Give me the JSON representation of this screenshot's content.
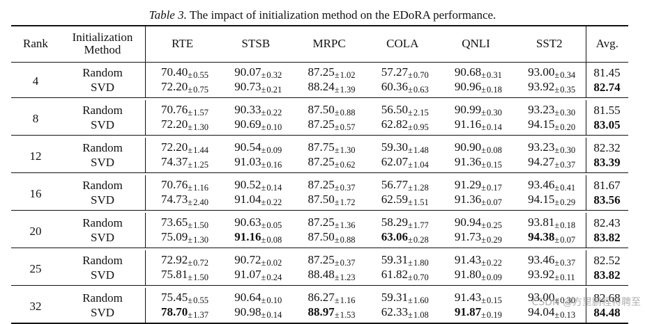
{
  "caption": {
    "label": "Table 3.",
    "text": "The impact of initialization method on the EDoRA performance."
  },
  "header": {
    "rank": "Rank",
    "init_line1": "Initialization",
    "init_line2": "Method",
    "columns": [
      "RTE",
      "STSB",
      "MRPC",
      "COLA",
      "QNLI",
      "SST2"
    ],
    "avg": "Avg."
  },
  "groups": [
    {
      "rank": "4",
      "rows": [
        {
          "method": "Random",
          "cells": [
            [
              "70.40",
              "0.55",
              false
            ],
            [
              "90.07",
              "0.32",
              false
            ],
            [
              "87.25",
              "1.02",
              false
            ],
            [
              "57.27",
              "0.70",
              false
            ],
            [
              "90.68",
              "0.31",
              false
            ],
            [
              "93.00",
              "0.34",
              false
            ]
          ],
          "avg": [
            "81.45",
            false
          ]
        },
        {
          "method": "SVD",
          "cells": [
            [
              "72.20",
              "0.75",
              false
            ],
            [
              "90.73",
              "0.21",
              false
            ],
            [
              "88.24",
              "1.39",
              false
            ],
            [
              "60.36",
              "0.63",
              false
            ],
            [
              "90.96",
              "0.18",
              false
            ],
            [
              "93.92",
              "0.35",
              false
            ]
          ],
          "avg": [
            "82.74",
            true
          ]
        }
      ]
    },
    {
      "rank": "8",
      "rows": [
        {
          "method": "Random",
          "cells": [
            [
              "70.76",
              "1.57",
              false
            ],
            [
              "90.33",
              "0.22",
              false
            ],
            [
              "87.50",
              "0.88",
              false
            ],
            [
              "56.50",
              "2.15",
              false
            ],
            [
              "90.99",
              "0.30",
              false
            ],
            [
              "93.23",
              "0.30",
              false
            ]
          ],
          "avg": [
            "81.55",
            false
          ]
        },
        {
          "method": "SVD",
          "cells": [
            [
              "72.20",
              "1.30",
              false
            ],
            [
              "90.69",
              "0.10",
              false
            ],
            [
              "87.25",
              "0.57",
              false
            ],
            [
              "62.82",
              "0.95",
              false
            ],
            [
              "91.16",
              "0.14",
              false
            ],
            [
              "94.15",
              "0.20",
              false
            ]
          ],
          "avg": [
            "83.05",
            true
          ]
        }
      ]
    },
    {
      "rank": "12",
      "rows": [
        {
          "method": "Random",
          "cells": [
            [
              "72.20",
              "1.44",
              false
            ],
            [
              "90.54",
              "0.09",
              false
            ],
            [
              "87.75",
              "1.30",
              false
            ],
            [
              "59.30",
              "1.48",
              false
            ],
            [
              "90.90",
              "0.08",
              false
            ],
            [
              "93.23",
              "0.30",
              false
            ]
          ],
          "avg": [
            "82.32",
            false
          ]
        },
        {
          "method": "SVD",
          "cells": [
            [
              "74.37",
              "1.25",
              false
            ],
            [
              "91.03",
              "0.16",
              false
            ],
            [
              "87.25",
              "0.62",
              false
            ],
            [
              "62.07",
              "1.04",
              false
            ],
            [
              "91.36",
              "0.15",
              false
            ],
            [
              "94.27",
              "0.37",
              false
            ]
          ],
          "avg": [
            "83.39",
            true
          ]
        }
      ]
    },
    {
      "rank": "16",
      "rows": [
        {
          "method": "Random",
          "cells": [
            [
              "70.76",
              "1.16",
              false
            ],
            [
              "90.52",
              "0.14",
              false
            ],
            [
              "87.25",
              "0.37",
              false
            ],
            [
              "56.77",
              "1.28",
              false
            ],
            [
              "91.29",
              "0.17",
              false
            ],
            [
              "93.46",
              "0.41",
              false
            ]
          ],
          "avg": [
            "81.67",
            false
          ]
        },
        {
          "method": "SVD",
          "cells": [
            [
              "74.73",
              "2.40",
              false
            ],
            [
              "91.04",
              "0.22",
              false
            ],
            [
              "87.50",
              "1.72",
              false
            ],
            [
              "62.59",
              "1.51",
              false
            ],
            [
              "91.36",
              "0.07",
              false
            ],
            [
              "94.15",
              "0.29",
              false
            ]
          ],
          "avg": [
            "83.56",
            true
          ]
        }
      ]
    },
    {
      "rank": "20",
      "rows": [
        {
          "method": "Random",
          "cells": [
            [
              "73.65",
              "1.50",
              false
            ],
            [
              "90.63",
              "0.05",
              false
            ],
            [
              "87.25",
              "1.36",
              false
            ],
            [
              "58.29",
              "1.77",
              false
            ],
            [
              "90.94",
              "0.25",
              false
            ],
            [
              "93.81",
              "0.18",
              false
            ]
          ],
          "avg": [
            "82.43",
            false
          ]
        },
        {
          "method": "SVD",
          "cells": [
            [
              "75.09",
              "1.30",
              false
            ],
            [
              "91.16",
              "0.08",
              true
            ],
            [
              "87.50",
              "0.88",
              false
            ],
            [
              "63.06",
              "0.28",
              true
            ],
            [
              "91.73",
              "0.29",
              false
            ],
            [
              "94.38",
              "0.07",
              true
            ]
          ],
          "avg": [
            "83.82",
            true
          ]
        }
      ]
    },
    {
      "rank": "25",
      "rows": [
        {
          "method": "Random",
          "cells": [
            [
              "72.92",
              "0.72",
              false
            ],
            [
              "90.72",
              "0.02",
              false
            ],
            [
              "87.25",
              "0.37",
              false
            ],
            [
              "59.31",
              "1.80",
              false
            ],
            [
              "91.43",
              "0.22",
              false
            ],
            [
              "93.46",
              "0.37",
              false
            ]
          ],
          "avg": [
            "82.52",
            false
          ]
        },
        {
          "method": "SVD",
          "cells": [
            [
              "75.81",
              "1.50",
              false
            ],
            [
              "91.07",
              "0.24",
              false
            ],
            [
              "88.48",
              "1.23",
              false
            ],
            [
              "61.82",
              "0.70",
              false
            ],
            [
              "91.80",
              "0.09",
              false
            ],
            [
              "93.92",
              "0.11",
              false
            ]
          ],
          "avg": [
            "83.82",
            true
          ]
        }
      ]
    },
    {
      "rank": "32",
      "rows": [
        {
          "method": "Random",
          "cells": [
            [
              "75.45",
              "0.55",
              false
            ],
            [
              "90.64",
              "0.10",
              false
            ],
            [
              "86.27",
              "1.16",
              false
            ],
            [
              "59.31",
              "1.60",
              false
            ],
            [
              "91.43",
              "0.15",
              false
            ],
            [
              "93.00",
              "0.30",
              false
            ]
          ],
          "avg": [
            "82.68",
            false
          ]
        },
        {
          "method": "SVD",
          "cells": [
            [
              "78.70",
              "1.37",
              true
            ],
            [
              "90.98",
              "0.14",
              false
            ],
            [
              "88.97",
              "1.53",
              true
            ],
            [
              "62.33",
              "1.08",
              false
            ],
            [
              "91.87",
              "0.19",
              true
            ],
            [
              "94.04",
              "0.13",
              false
            ]
          ],
          "avg": [
            "84.48",
            true
          ]
        }
      ]
    }
  ],
  "pm_symbol": "±",
  "watermark": "CSDN @方里鹏程特聘至"
}
